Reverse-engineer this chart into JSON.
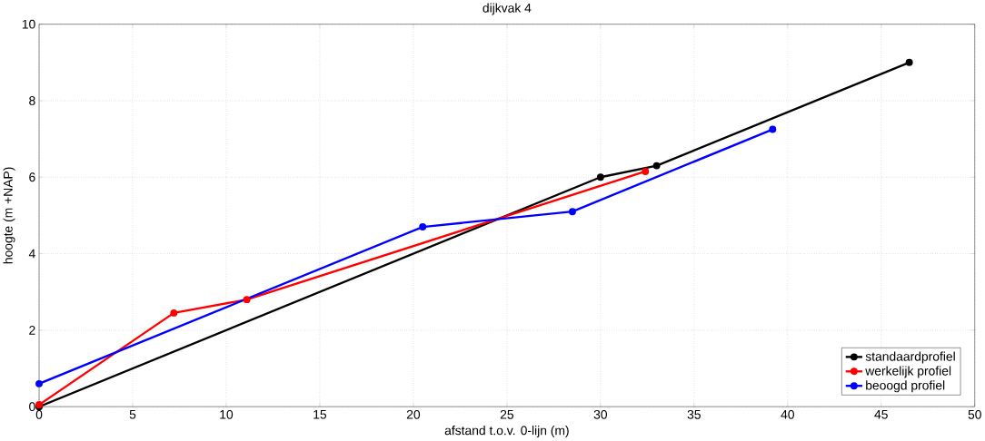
{
  "chart_data": {
    "type": "line",
    "title": "dijkvak 4",
    "xlabel": "afstand t.o.v. 0-lijn (m)",
    "ylabel": "hoogte (m +NAP)",
    "xlim": [
      0,
      50
    ],
    "ylim": [
      0,
      10
    ],
    "xticks": [
      0,
      5,
      10,
      15,
      20,
      25,
      30,
      35,
      40,
      45,
      50
    ],
    "yticks": [
      0,
      2,
      4,
      6,
      8,
      10
    ],
    "grid": true,
    "legend": "bottom right",
    "marker": "circle",
    "line_style": "solid",
    "series": [
      {
        "name": "standaardprofiel",
        "color": "#000000",
        "x": [
          0,
          30.0,
          33.0,
          46.5
        ],
        "values": [
          0,
          6.0,
          6.3,
          9.0
        ]
      },
      {
        "name": "werkelijk profiel",
        "color": "#ff0000",
        "x": [
          0,
          7.2,
          11.1,
          32.4
        ],
        "values": [
          0.05,
          2.45,
          2.8,
          6.15
        ]
      },
      {
        "name": "beoogd profiel",
        "color": "#0000ff",
        "x": [
          0,
          20.5,
          28.5,
          39.2
        ],
        "values": [
          0.6,
          4.7,
          5.1,
          7.25
        ]
      }
    ]
  }
}
